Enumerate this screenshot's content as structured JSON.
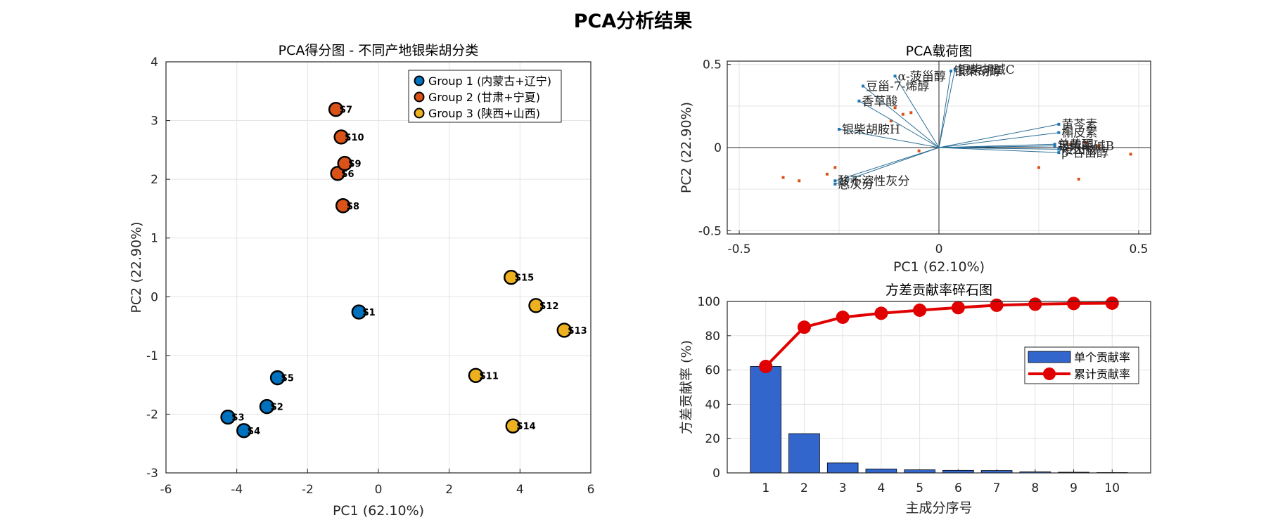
{
  "title": "PCA分析结果",
  "colors": {
    "group1": "#0072BD",
    "group2": "#D95319",
    "group3": "#EDB120",
    "loading_line": "#2C6E96",
    "loading_dot": "#1F77B4",
    "score_dot": "#D95319",
    "bar": "#3366CC",
    "cum": "#E00000"
  },
  "chart_data": [
    {
      "type": "scatter",
      "title": "PCA得分图 - 不同产地银柴胡分类",
      "xlabel": "PC1 (62.10%)",
      "ylabel": "PC2 (22.90%)",
      "xlim": [
        -6,
        6
      ],
      "ylim": [
        -3,
        4
      ],
      "xticks": [
        -6,
        -4,
        -2,
        0,
        2,
        4,
        6
      ],
      "yticks": [
        -3,
        -2,
        -1,
        0,
        1,
        2,
        3,
        4
      ],
      "grid": true,
      "legend_position": "top-right",
      "series": [
        {
          "name": "Group 1 (内蒙古+辽宁)",
          "color": "#0072BD",
          "points": [
            {
              "label": "S1",
              "x": -0.55,
              "y": -0.26
            },
            {
              "label": "S2",
              "x": -3.15,
              "y": -1.87
            },
            {
              "label": "S3",
              "x": -4.25,
              "y": -2.05
            },
            {
              "label": "S4",
              "x": -3.8,
              "y": -2.28
            },
            {
              "label": "S5",
              "x": -2.85,
              "y": -1.38
            }
          ]
        },
        {
          "name": "Group 2 (甘肃+宁夏)",
          "color": "#D95319",
          "points": [
            {
              "label": "S6",
              "x": -1.15,
              "y": 2.1
            },
            {
              "label": "S7",
              "x": -1.2,
              "y": 3.19
            },
            {
              "label": "S8",
              "x": -1.0,
              "y": 1.55
            },
            {
              "label": "S9",
              "x": -0.95,
              "y": 2.27
            },
            {
              "label": "S10",
              "x": -1.05,
              "y": 2.72
            }
          ]
        },
        {
          "name": "Group 3 (陕西+山西)",
          "color": "#EDB120",
          "points": [
            {
              "label": "S11",
              "x": 2.75,
              "y": -1.34
            },
            {
              "label": "S12",
              "x": 4.45,
              "y": -0.15
            },
            {
              "label": "S13",
              "x": 5.25,
              "y": -0.57
            },
            {
              "label": "S14",
              "x": 3.8,
              "y": -2.2
            },
            {
              "label": "S15",
              "x": 3.75,
              "y": 0.33
            }
          ]
        }
      ]
    },
    {
      "type": "scatter",
      "title": "PCA载荷图",
      "xlabel": "PC1 (62.10%)",
      "ylabel": "PC2 (22.90%)",
      "xlim": [
        -0.53,
        0.53
      ],
      "ylim": [
        -0.52,
        0.52
      ],
      "xticks": [
        -0.5,
        0,
        0.5
      ],
      "yticks": [
        -0.5,
        0,
        0.5
      ],
      "grid": true,
      "loadings": [
        {
          "label": "α-菠甾醇",
          "x": -0.11,
          "y": 0.43
        },
        {
          "label": "豆甾-7-烯醇",
          "x": -0.19,
          "y": 0.37
        },
        {
          "label": "香草酸",
          "x": -0.2,
          "y": 0.28
        },
        {
          "label": "银柴胡胺H",
          "x": -0.25,
          "y": 0.11
        },
        {
          "label": "酸不溶性灰分",
          "x": -0.26,
          "y": -0.2
        },
        {
          "label": "总灰分",
          "x": -0.26,
          "y": -0.22
        },
        {
          "label": "银柴胡碱C",
          "x": 0.04,
          "y": 0.47
        },
        {
          "label": "银柴胡醇",
          "x": 0.03,
          "y": 0.46
        },
        {
          "label": "黄芩素",
          "x": 0.3,
          "y": 0.14
        },
        {
          "label": "槲皮素",
          "x": 0.3,
          "y": 0.09
        },
        {
          "label": "银柴胡碱B",
          "x": 0.29,
          "y": 0.01
        },
        {
          "label": "总黄酮",
          "x": 0.29,
          "y": 0.02
        },
        {
          "label": "浸出物",
          "x": 0.3,
          "y": -0.01
        },
        {
          "label": "β-谷甾醇",
          "x": 0.3,
          "y": -0.03
        }
      ],
      "scores_overlay": [
        {
          "x": -0.39,
          "y": -0.18
        },
        {
          "x": -0.35,
          "y": -0.2
        },
        {
          "x": -0.28,
          "y": -0.16
        },
        {
          "x": -0.26,
          "y": -0.12
        },
        {
          "x": -0.05,
          "y": -0.02
        },
        {
          "x": -0.11,
          "y": 0.24
        },
        {
          "x": -0.09,
          "y": 0.2
        },
        {
          "x": -0.07,
          "y": 0.21
        },
        {
          "x": -0.12,
          "y": 0.16
        },
        {
          "x": 0.25,
          "y": -0.12
        },
        {
          "x": 0.35,
          "y": -0.19
        },
        {
          "x": 0.48,
          "y": -0.04
        },
        {
          "x": 0.33,
          "y": 0.02
        },
        {
          "x": 0.37,
          "y": 0.03
        },
        {
          "x": 0.4,
          "y": 0.01
        }
      ]
    },
    {
      "type": "bar",
      "title": "方差贡献率碎石图",
      "xlabel": "主成分序号",
      "ylabel": "方差贡献率 (%)",
      "ylim": [
        0,
        100
      ],
      "yticks": [
        0,
        20,
        40,
        60,
        80,
        100
      ],
      "grid": true,
      "legend_position": "right",
      "categories": [
        "1",
        "2",
        "3",
        "4",
        "5",
        "6",
        "7",
        "8",
        "9",
        "10"
      ],
      "series": [
        {
          "name": "单个贡献率",
          "type": "bar",
          "values": [
            62.1,
            22.9,
            5.8,
            2.3,
            1.8,
            1.5,
            1.4,
            0.6,
            0.4,
            0.2
          ]
        },
        {
          "name": "累计贡献率",
          "type": "line",
          "values": [
            62.1,
            85.0,
            90.8,
            93.1,
            94.9,
            96.4,
            97.8,
            98.4,
            98.8,
            99.0
          ]
        }
      ]
    }
  ]
}
